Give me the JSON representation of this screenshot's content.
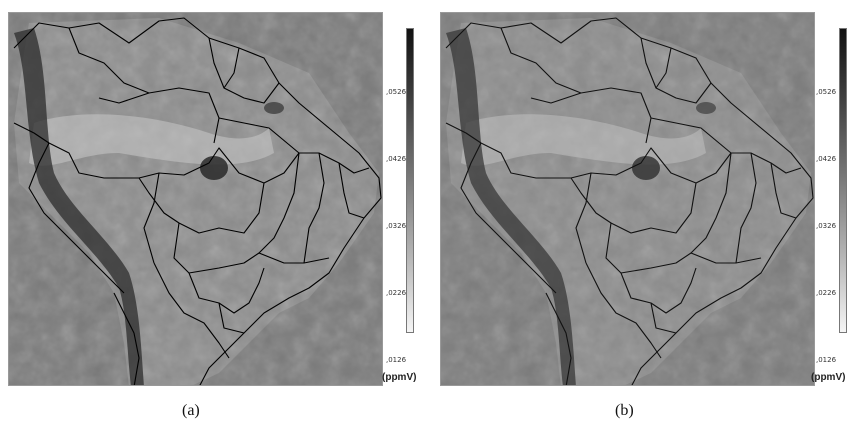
{
  "panels": [
    {
      "id": "a",
      "caption": "(a)",
      "colorbar": {
        "ticks": [
          ",0526",
          ",0426",
          ",0326",
          ",0226",
          ",0126"
        ],
        "unit": "(ppmV)",
        "range": [
          0.0126,
          0.0626
        ],
        "gradient": [
          "#111111",
          "#f5f5f5"
        ]
      }
    },
    {
      "id": "b",
      "caption": "(b)",
      "colorbar": {
        "ticks": [
          ",0526",
          ",0426",
          ",0326",
          ",0226",
          ",0126"
        ],
        "unit": "(ppmV)",
        "range": [
          0.0126,
          0.0626
        ],
        "gradient": [
          "#111111",
          "#f5f5f5"
        ]
      }
    }
  ],
  "colors": {
    "background_field": "#7a7a7a",
    "border_lines": "#000000"
  }
}
